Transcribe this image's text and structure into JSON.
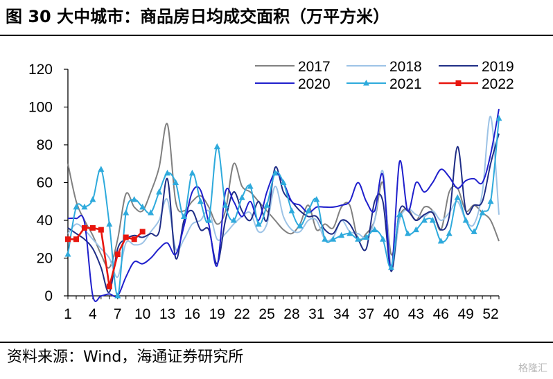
{
  "header": {
    "title": "图  30 大中城市：商品房日均成交面积（万平方米）"
  },
  "footer": {
    "source": "资料来源：Wind，海通证券研究所",
    "watermark": "格隆汇"
  },
  "chart_data": {
    "type": "line",
    "title": "",
    "xlabel": "",
    "ylabel": "",
    "ylim": [
      0,
      120
    ],
    "xlim": [
      1,
      53
    ],
    "yticks": [
      0,
      20,
      40,
      60,
      80,
      100,
      120
    ],
    "xticks": [
      1,
      4,
      7,
      10,
      13,
      16,
      19,
      22,
      25,
      28,
      31,
      34,
      37,
      40,
      43,
      46,
      49,
      52
    ],
    "grid": false,
    "legend_position": "top-right",
    "series": [
      {
        "name": "2017",
        "color": "#808080",
        "marker": "none",
        "x": [
          1,
          2,
          3,
          4,
          5,
          6,
          7,
          8,
          9,
          10,
          11,
          12,
          13,
          14,
          15,
          16,
          17,
          18,
          19,
          20,
          21,
          22,
          23,
          24,
          25,
          26,
          27,
          28,
          29,
          30,
          31,
          32,
          33,
          34,
          35,
          36,
          37,
          38,
          39,
          40,
          41,
          42,
          43,
          44,
          45,
          46,
          47,
          48,
          49,
          50,
          51,
          52,
          53
        ],
        "values": [
          70,
          50,
          40,
          32,
          22,
          15,
          30,
          54,
          47,
          45,
          55,
          68,
          91,
          50,
          45,
          50,
          53,
          47,
          38,
          45,
          70,
          58,
          55,
          50,
          45,
          40,
          35,
          33,
          38,
          48,
          35,
          38,
          36,
          47,
          48,
          30,
          33,
          40,
          60,
          22,
          42,
          46,
          40,
          47,
          45,
          35,
          55,
          57,
          45,
          48,
          44,
          40,
          29
        ]
      },
      {
        "name": "2018",
        "color": "#9DC3E6",
        "marker": "none",
        "x": [
          1,
          2,
          3,
          4,
          5,
          6,
          7,
          8,
          9,
          10,
          11,
          12,
          13,
          14,
          15,
          16,
          17,
          18,
          19,
          20,
          21,
          22,
          23,
          24,
          25,
          26,
          27,
          28,
          29,
          30,
          31,
          32,
          33,
          34,
          35,
          36,
          37,
          38,
          39,
          40,
          41,
          42,
          43,
          44,
          45,
          46,
          47,
          48,
          49,
          50,
          51,
          52,
          53
        ],
        "values": [
          33,
          38,
          35,
          30,
          25,
          20,
          10,
          28,
          27,
          28,
          34,
          40,
          51,
          25,
          30,
          38,
          40,
          45,
          30,
          33,
          38,
          42,
          44,
          34,
          38,
          58,
          42,
          35,
          34,
          40,
          40,
          30,
          31,
          40,
          34,
          33,
          31,
          40,
          66,
          15,
          40,
          46,
          43,
          42,
          45,
          40,
          44,
          50,
          40,
          38,
          55,
          95,
          43
        ]
      },
      {
        "name": "2019",
        "color": "#1F2D86",
        "marker": "none",
        "x": [
          1,
          2,
          3,
          4,
          5,
          6,
          7,
          8,
          9,
          10,
          11,
          12,
          13,
          14,
          15,
          16,
          17,
          18,
          19,
          20,
          21,
          22,
          23,
          24,
          25,
          26,
          27,
          28,
          29,
          30,
          31,
          32,
          33,
          34,
          35,
          36,
          37,
          38,
          39,
          40,
          41,
          42,
          43,
          44,
          45,
          46,
          47,
          48,
          49,
          50,
          51,
          52,
          53
        ],
        "values": [
          36,
          33,
          30,
          25,
          15,
          2,
          25,
          30,
          32,
          31,
          33,
          34,
          62,
          20,
          40,
          45,
          35,
          35,
          17,
          40,
          55,
          45,
          40,
          50,
          40,
          68,
          55,
          50,
          45,
          42,
          42,
          35,
          33,
          40,
          38,
          30,
          25,
          50,
          50,
          13,
          45,
          45,
          40,
          43,
          44,
          35,
          42,
          79,
          45,
          48,
          50,
          70,
          86
        ]
      },
      {
        "name": "2020",
        "color": "#1F1FCC",
        "marker": "none",
        "x": [
          1,
          2,
          3,
          4,
          5,
          6,
          7,
          8,
          9,
          10,
          11,
          12,
          13,
          14,
          15,
          16,
          17,
          18,
          19,
          20,
          21,
          22,
          23,
          24,
          25,
          26,
          27,
          28,
          29,
          30,
          31,
          32,
          33,
          34,
          35,
          36,
          37,
          38,
          39,
          40,
          41,
          42,
          43,
          44,
          45,
          46,
          47,
          48,
          49,
          50,
          51,
          52,
          53
        ],
        "values": [
          41,
          41,
          39,
          0,
          0,
          1,
          0,
          10,
          18,
          17,
          20,
          25,
          28,
          22,
          37,
          55,
          56,
          38,
          16,
          55,
          50,
          42,
          50,
          40,
          55,
          65,
          60,
          50,
          48,
          44,
          47,
          47,
          47,
          48,
          50,
          60,
          50,
          45,
          64,
          14,
          71,
          45,
          60,
          55,
          60,
          67,
          63,
          57,
          61,
          62,
          60,
          75,
          99
        ]
      },
      {
        "name": "2021",
        "color": "#2EAADC",
        "marker": "triangle",
        "x": [
          1,
          2,
          3,
          4,
          5,
          6,
          7,
          8,
          9,
          10,
          11,
          12,
          13,
          14,
          15,
          16,
          17,
          18,
          19,
          20,
          21,
          22,
          23,
          24,
          25,
          26,
          27,
          28,
          29,
          30,
          31,
          32,
          33,
          34,
          35,
          36,
          37,
          38,
          39,
          40,
          41,
          42,
          43,
          44,
          45,
          46,
          47,
          48,
          49,
          50,
          51,
          52,
          53
        ],
        "values": [
          22,
          47,
          47,
          51,
          67,
          38,
          0,
          44,
          51,
          47,
          44,
          55,
          65,
          60,
          42,
          65,
          50,
          40,
          79,
          48,
          40,
          52,
          58,
          38,
          48,
          65,
          60,
          45,
          37,
          45,
          51,
          30,
          30,
          32,
          33,
          30,
          31,
          35,
          30,
          15,
          43,
          33,
          35,
          40,
          40,
          29,
          33,
          52,
          40,
          34,
          44,
          50,
          94
        ]
      },
      {
        "name": "2022",
        "color": "#E8160E",
        "marker": "square",
        "x": [
          1,
          2,
          3,
          4,
          5,
          6,
          7,
          8,
          9,
          10
        ],
        "values": [
          30,
          30,
          36,
          36,
          35,
          5,
          22,
          31,
          30,
          34
        ]
      }
    ]
  }
}
